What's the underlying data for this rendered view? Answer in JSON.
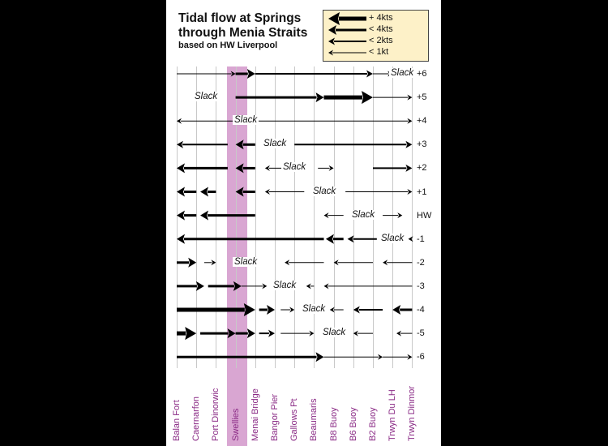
{
  "title": [
    "Tidal flow at Springs",
    "through Menia Straits",
    "based on HW Liverpool"
  ],
  "legend": [
    {
      "label": "+ 4kts",
      "strength": 4
    },
    {
      "label": "< 4kts",
      "strength": 3
    },
    {
      "label": "< 2kts",
      "strength": 2
    },
    {
      "label": "< 1kt",
      "strength": 1
    }
  ],
  "slack_label": "Slack",
  "colors": {
    "highlight": "#d9a6d2",
    "location_text": "#8a2a85",
    "legend_bg": "#fdf1c8"
  },
  "locations": [
    "Balan Fort",
    "Caernarfon",
    "Port Dinorwic",
    "Swellies",
    "Menai Bridge",
    "Bangor Pier",
    "Gallows Pt",
    "Beaumaris",
    "B8 Buoy",
    "B6 Buoy",
    "B2 Buoy",
    "Trwyn Du LH",
    "Trwyn Dinmor"
  ],
  "highlighted_location": "Swellies",
  "rows": [
    {
      "tide": "+6",
      "slack_at": 11.5,
      "flows": [
        {
          "from": 0,
          "to": 3,
          "dir": "east",
          "strength": 1
        },
        {
          "from": 3,
          "to": 4,
          "dir": "east",
          "strength": 3
        },
        {
          "from": 4,
          "to": 10,
          "dir": "east",
          "strength": 2
        },
        {
          "from": 10,
          "to": 11,
          "dir": "east",
          "strength": 1
        },
        {
          "from": 12,
          "to": 11.8,
          "dir": "west",
          "strength": 1
        }
      ]
    },
    {
      "tide": "+5",
      "slack_at": 1.5,
      "flows": [
        {
          "from": 3,
          "to": 7.5,
          "dir": "east",
          "strength": 3
        },
        {
          "from": 7.5,
          "to": 10,
          "dir": "east",
          "strength": 4
        },
        {
          "from": 10,
          "to": 12,
          "dir": "east",
          "strength": 1
        }
      ]
    },
    {
      "tide": "+4",
      "slack_at": 3.5,
      "flows": [
        {
          "from": 3,
          "to": 0,
          "dir": "west",
          "strength": 1
        },
        {
          "from": 4,
          "to": 12,
          "dir": "east",
          "strength": 1
        }
      ]
    },
    {
      "tide": "+3",
      "slack_at": 5,
      "flows": [
        {
          "from": 2.6,
          "to": 0,
          "dir": "west",
          "strength": 2
        },
        {
          "from": 4,
          "to": 3,
          "dir": "west",
          "strength": 3
        },
        {
          "from": 6,
          "to": 12,
          "dir": "east",
          "strength": 2
        }
      ]
    },
    {
      "tide": "+2",
      "slack_at": 6,
      "flows": [
        {
          "from": 2.6,
          "to": 0,
          "dir": "west",
          "strength": 3
        },
        {
          "from": 4,
          "to": 3,
          "dir": "west",
          "strength": 3
        },
        {
          "from": 5.4,
          "to": 4.5,
          "dir": "west",
          "strength": 1
        },
        {
          "from": 7.2,
          "to": 8,
          "dir": "east",
          "strength": 1
        },
        {
          "from": 10,
          "to": 12,
          "dir": "east",
          "strength": 2
        }
      ]
    },
    {
      "tide": "+1",
      "slack_at": 7.5,
      "flows": [
        {
          "from": 1,
          "to": 0,
          "dir": "west",
          "strength": 3
        },
        {
          "from": 2,
          "to": 1.2,
          "dir": "west",
          "strength": 3
        },
        {
          "from": 4,
          "to": 3,
          "dir": "west",
          "strength": 3
        },
        {
          "from": 6.5,
          "to": 4.5,
          "dir": "west",
          "strength": 1
        },
        {
          "from": 8.6,
          "to": 12,
          "dir": "east",
          "strength": 1
        }
      ]
    },
    {
      "tide": "HW",
      "slack_at": 9.5,
      "flows": [
        {
          "from": 1,
          "to": 0,
          "dir": "west",
          "strength": 3
        },
        {
          "from": 4,
          "to": 1.2,
          "dir": "west",
          "strength": 3
        },
        {
          "from": 8.5,
          "to": 7.5,
          "dir": "west",
          "strength": 1
        },
        {
          "from": 10.5,
          "to": 11.5,
          "dir": "east",
          "strength": 1
        }
      ]
    },
    {
      "tide": "-1",
      "slack_at": 11,
      "flows": [
        {
          "from": 7.5,
          "to": 0,
          "dir": "west",
          "strength": 3
        },
        {
          "from": 8.5,
          "to": 7.6,
          "dir": "west",
          "strength": 3
        },
        {
          "from": 10.2,
          "to": 8.7,
          "dir": "west",
          "strength": 2
        },
        {
          "from": 12,
          "to": 11.8,
          "dir": "west",
          "strength": 1
        }
      ]
    },
    {
      "tide": "-2",
      "slack_at": 3.5,
      "flows": [
        {
          "from": 0,
          "to": 1,
          "dir": "east",
          "strength": 3
        },
        {
          "from": 1.4,
          "to": 2,
          "dir": "east",
          "strength": 1
        },
        {
          "from": 7.5,
          "to": 5.5,
          "dir": "west",
          "strength": 1
        },
        {
          "from": 10,
          "to": 8,
          "dir": "west",
          "strength": 1
        },
        {
          "from": 12,
          "to": 10.5,
          "dir": "west",
          "strength": 1
        }
      ]
    },
    {
      "tide": "-3",
      "slack_at": 5.5,
      "flows": [
        {
          "from": 0,
          "to": 1.4,
          "dir": "east",
          "strength": 3
        },
        {
          "from": 1.6,
          "to": 3.3,
          "dir": "east",
          "strength": 3
        },
        {
          "from": 3.3,
          "to": 4.6,
          "dir": "east",
          "strength": 1
        },
        {
          "from": 7,
          "to": 6.6,
          "dir": "west",
          "strength": 1
        },
        {
          "from": 12,
          "to": 7.5,
          "dir": "west",
          "strength": 1
        }
      ]
    },
    {
      "tide": "-4",
      "slack_at": 7,
      "flows": [
        {
          "from": 0,
          "to": 4,
          "dir": "east",
          "strength": 4
        },
        {
          "from": 4.2,
          "to": 5,
          "dir": "east",
          "strength": 3
        },
        {
          "from": 5.3,
          "to": 6,
          "dir": "east",
          "strength": 1
        },
        {
          "from": 8.5,
          "to": 7.8,
          "dir": "west",
          "strength": 1
        },
        {
          "from": 10.5,
          "to": 9,
          "dir": "west",
          "strength": 2
        },
        {
          "from": 12,
          "to": 11,
          "dir": "west",
          "strength": 3
        }
      ]
    },
    {
      "tide": "-5",
      "slack_at": 8,
      "flows": [
        {
          "from": 0,
          "to": 1,
          "dir": "east",
          "strength": 4
        },
        {
          "from": 1.2,
          "to": 3,
          "dir": "east",
          "strength": 3
        },
        {
          "from": 3,
          "to": 4,
          "dir": "east",
          "strength": 3
        },
        {
          "from": 4.2,
          "to": 5,
          "dir": "east",
          "strength": 2
        },
        {
          "from": 5.3,
          "to": 7,
          "dir": "east",
          "strength": 1
        },
        {
          "from": 10,
          "to": 9,
          "dir": "west",
          "strength": 1
        },
        {
          "from": 12,
          "to": 11.2,
          "dir": "west",
          "strength": 1
        }
      ]
    },
    {
      "tide": "-6",
      "slack_at": null,
      "flows": [
        {
          "from": 0,
          "to": 7.5,
          "dir": "east",
          "strength": 3
        },
        {
          "from": 7.5,
          "to": 10.5,
          "dir": "east",
          "strength": 1
        },
        {
          "from": 10.5,
          "to": 12,
          "dir": "east",
          "strength": 1
        }
      ]
    }
  ]
}
